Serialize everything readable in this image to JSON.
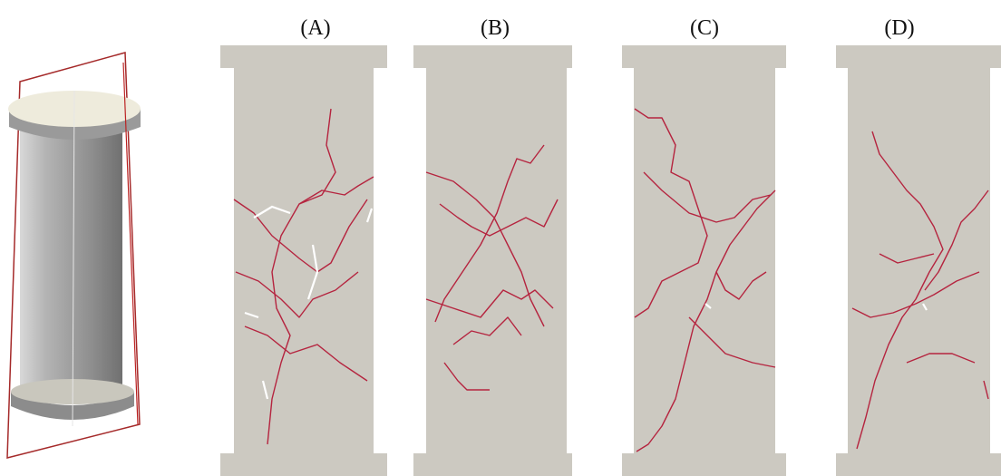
{
  "panels": [
    {
      "label": "(A)"
    },
    {
      "label": "(B)"
    },
    {
      "label": "(C)"
    },
    {
      "label": "(D)"
    }
  ]
}
